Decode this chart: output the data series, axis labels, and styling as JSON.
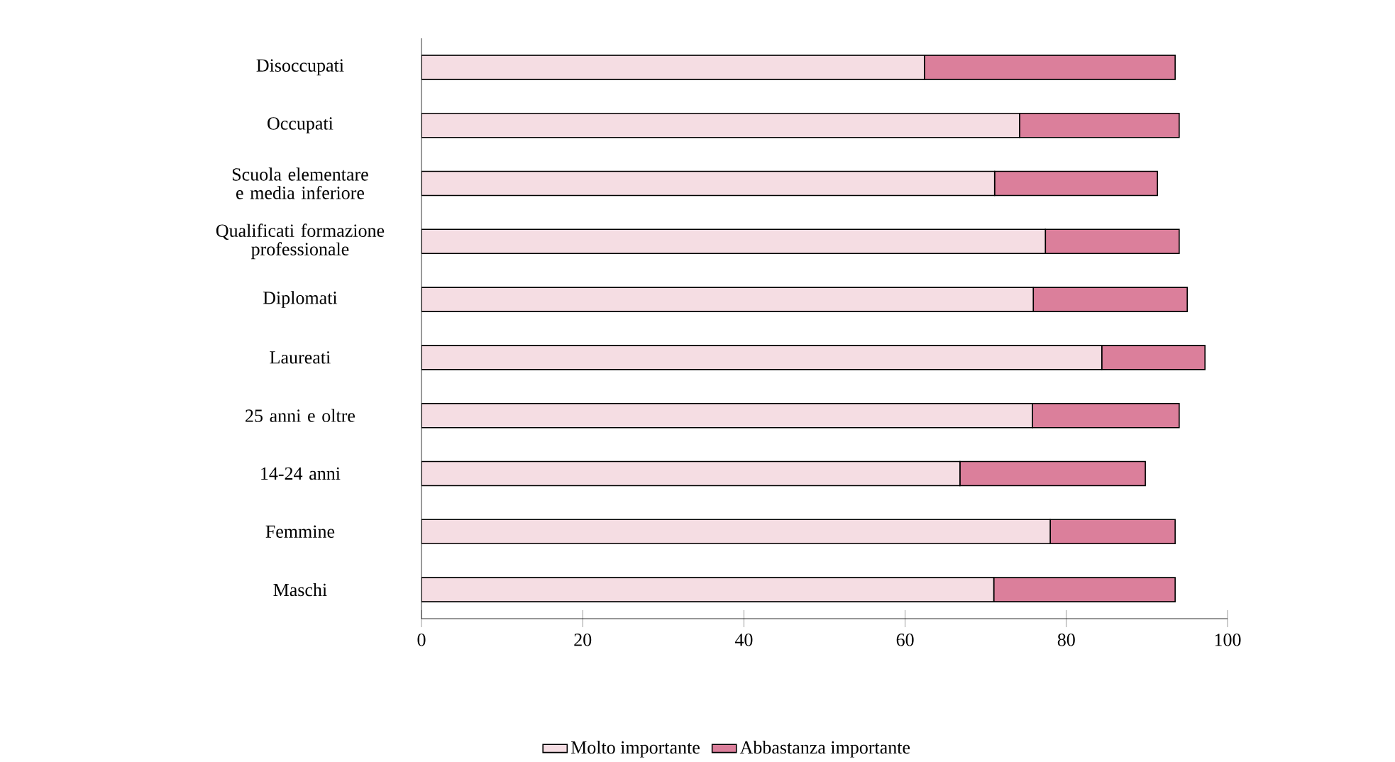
{
  "chart_data": {
    "type": "bar",
    "orientation": "horizontal",
    "stacked": true,
    "categories": [
      "Disoccupati",
      "Occupati",
      "Scuola elementare e media inferiore",
      "Qualificati formazione professionale",
      "Diplomati",
      "Laureati",
      "25 anni e oltre",
      "14-24 anni",
      "Femmine",
      "Maschi"
    ],
    "series": [
      {
        "name": "Molto importante",
        "color": "#f5dde3",
        "values": [
          62.4,
          74.2,
          71.1,
          77.4,
          75.9,
          84.4,
          75.8,
          66.8,
          78.0,
          71.0
        ]
      },
      {
        "name": "Abbastanza importante",
        "color": "#db7f9b",
        "values": [
          31.1,
          19.8,
          20.2,
          16.6,
          19.1,
          12.8,
          18.2,
          23.0,
          15.5,
          22.5
        ]
      }
    ],
    "xlim": [
      0,
      100
    ],
    "xticks": [
      0,
      20,
      40,
      60,
      80,
      100
    ],
    "grid": false,
    "legend": "bottom"
  }
}
